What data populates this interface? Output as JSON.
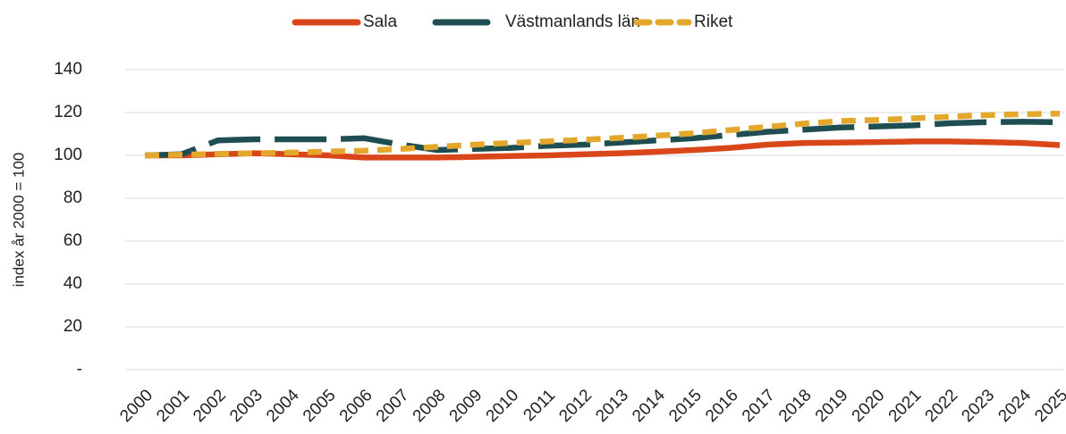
{
  "chart_data": {
    "type": "line",
    "categories": [
      "2000",
      "2001",
      "2002",
      "2003",
      "2004",
      "2005",
      "2006",
      "2007",
      "2008",
      "2009",
      "2010",
      "2011",
      "2012",
      "2013",
      "2014",
      "2015",
      "2016",
      "2017",
      "2018",
      "2019",
      "2020",
      "2021",
      "2022",
      "2023",
      "2024",
      "2025"
    ],
    "series": [
      {
        "name": "Sala",
        "color": "#d9461a",
        "dash": "solid",
        "values": [
          100,
          100,
          100.5,
          101,
          100.5,
          100,
          99,
          99,
          99,
          99.3,
          99.7,
          100,
          100.5,
          101,
          101.7,
          102.5,
          103.5,
          105,
          105.8,
          106,
          106.2,
          106.5,
          106.5,
          106.2,
          105.8,
          104.8
        ]
      },
      {
        "name": "Västmanlands län",
        "color": "#1f4e52",
        "dash": "long",
        "values": [
          100,
          100.5,
          107,
          107.5,
          107.5,
          107.5,
          108,
          105,
          102.5,
          103,
          103.5,
          104.5,
          105,
          106,
          107,
          108,
          109.5,
          111,
          112,
          113,
          113.5,
          114,
          115,
          115.5,
          115.7,
          115.5
        ]
      },
      {
        "name": "Riket",
        "color": "#e3a82b",
        "dash": "short",
        "values": [
          100,
          100.3,
          100.7,
          101,
          101.3,
          101.8,
          102.2,
          103,
          104,
          105,
          105.8,
          106.5,
          107.3,
          108.2,
          109.2,
          110.3,
          111.8,
          113.3,
          114.8,
          116,
          116.5,
          117.3,
          118,
          118.8,
          119.2,
          119.5
        ]
      }
    ],
    "ylabel": "index år 2000 = 100",
    "ylim": [
      0,
      140
    ],
    "yticks": [
      {
        "value": 0,
        "label": "-"
      },
      20,
      40,
      60,
      80,
      100,
      120,
      140
    ],
    "grid": true,
    "legend": "top"
  }
}
